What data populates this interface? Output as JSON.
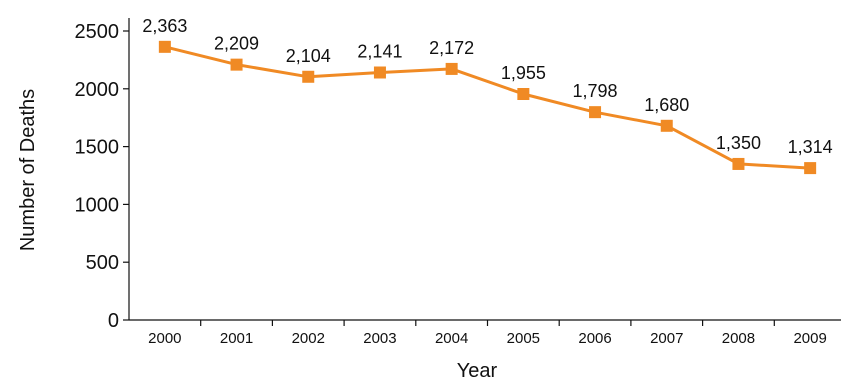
{
  "chart_data": {
    "type": "line",
    "title": "",
    "xlabel": "Year",
    "ylabel": "Number of Deaths",
    "categories": [
      "2000",
      "2001",
      "2002",
      "2003",
      "2004",
      "2005",
      "2006",
      "2007",
      "2008",
      "2009"
    ],
    "series": [
      {
        "values": [
          2363,
          2209,
          2104,
          2141,
          2172,
          1955,
          1798,
          1680,
          1350,
          1314
        ],
        "labels": [
          "2,363",
          "2,209",
          "2,104",
          "2,141",
          "2,172",
          "1,955",
          "1,798",
          "1,680",
          "1,350",
          "1,314"
        ],
        "color": "#F08A24",
        "marker": "square"
      }
    ],
    "yticks": [
      "0",
      "500",
      "1000",
      "1500",
      "2000",
      "2500"
    ],
    "ylim": [
      0,
      2500
    ],
    "grid": false,
    "legend": "none"
  }
}
